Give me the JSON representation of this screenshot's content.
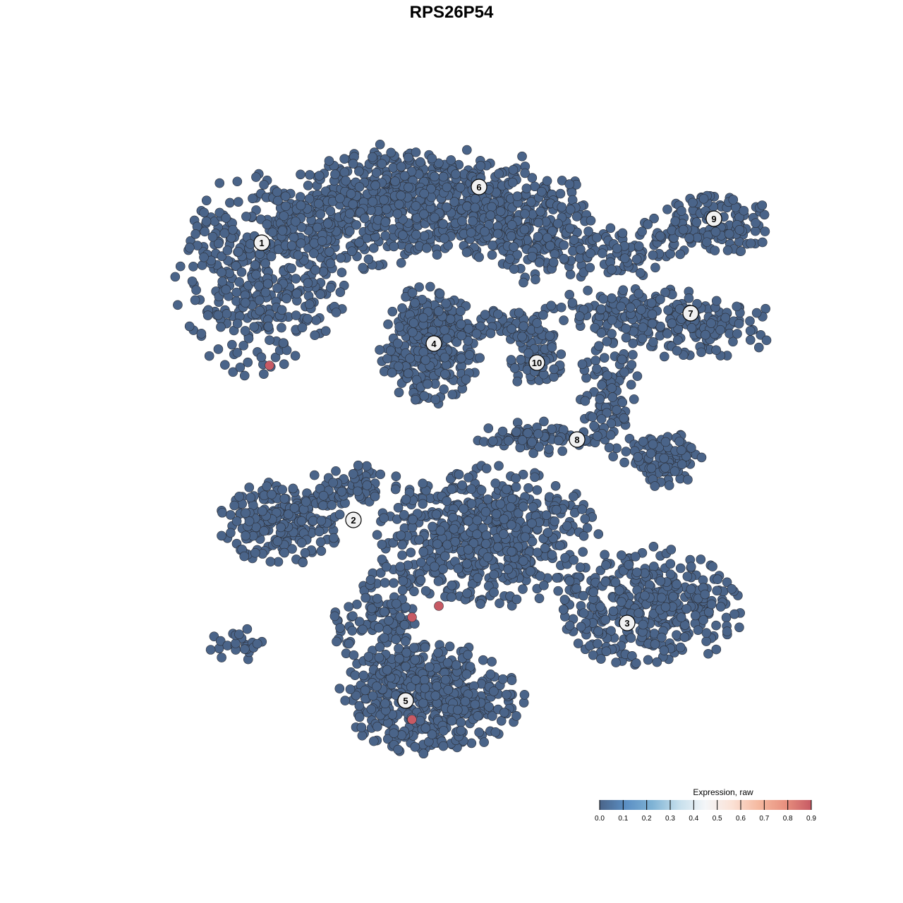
{
  "chart_data": {
    "type": "scatter",
    "title": "RPS26P54",
    "xlabel": "",
    "ylabel": "",
    "axes_visible": false,
    "grid": false,
    "point_color_default": "#4a6489",
    "cluster_labels": [
      {
        "label": "1",
        "x": -26.9,
        "y": 29.6
      },
      {
        "label": "2",
        "x": -13.9,
        "y": -9.7
      },
      {
        "label": "3",
        "x": 24.9,
        "y": -24.3
      },
      {
        "label": "4",
        "x": -2.5,
        "y": 15.3
      },
      {
        "label": "5",
        "x": -6.5,
        "y": -35.3
      },
      {
        "label": "6",
        "x": 3.9,
        "y": 37.5
      },
      {
        "label": "7",
        "x": 33.9,
        "y": 19.6
      },
      {
        "label": "8",
        "x": 17.8,
        "y": 1.7
      },
      {
        "label": "9",
        "x": 37.2,
        "y": 33.0
      },
      {
        "label": "10",
        "x": 12.1,
        "y": 12.6
      }
    ],
    "expressing_cells": [
      {
        "x": -25.8,
        "y": 12.2,
        "value": 0.9
      },
      {
        "x": -1.8,
        "y": -21.9,
        "value": 0.9
      },
      {
        "x": -5.6,
        "y": -23.5,
        "value": 0.9
      },
      {
        "x": -5.6,
        "y": -38.0,
        "value": 0.9
      }
    ],
    "legend": {
      "title": "Expression, raw",
      "position": "bottom-right",
      "ticks": [
        "0.0",
        "0.1",
        "0.2",
        "0.3",
        "0.4",
        "0.5",
        "0.6",
        "0.7",
        "0.8",
        "0.9"
      ],
      "colors": [
        "#4a6489",
        "#5b8fc4",
        "#7fb3d5",
        "#c6dfec",
        "#f4f6f8",
        "#fbe2d6",
        "#f5b9a0",
        "#e8917f",
        "#c75a64"
      ]
    }
  }
}
